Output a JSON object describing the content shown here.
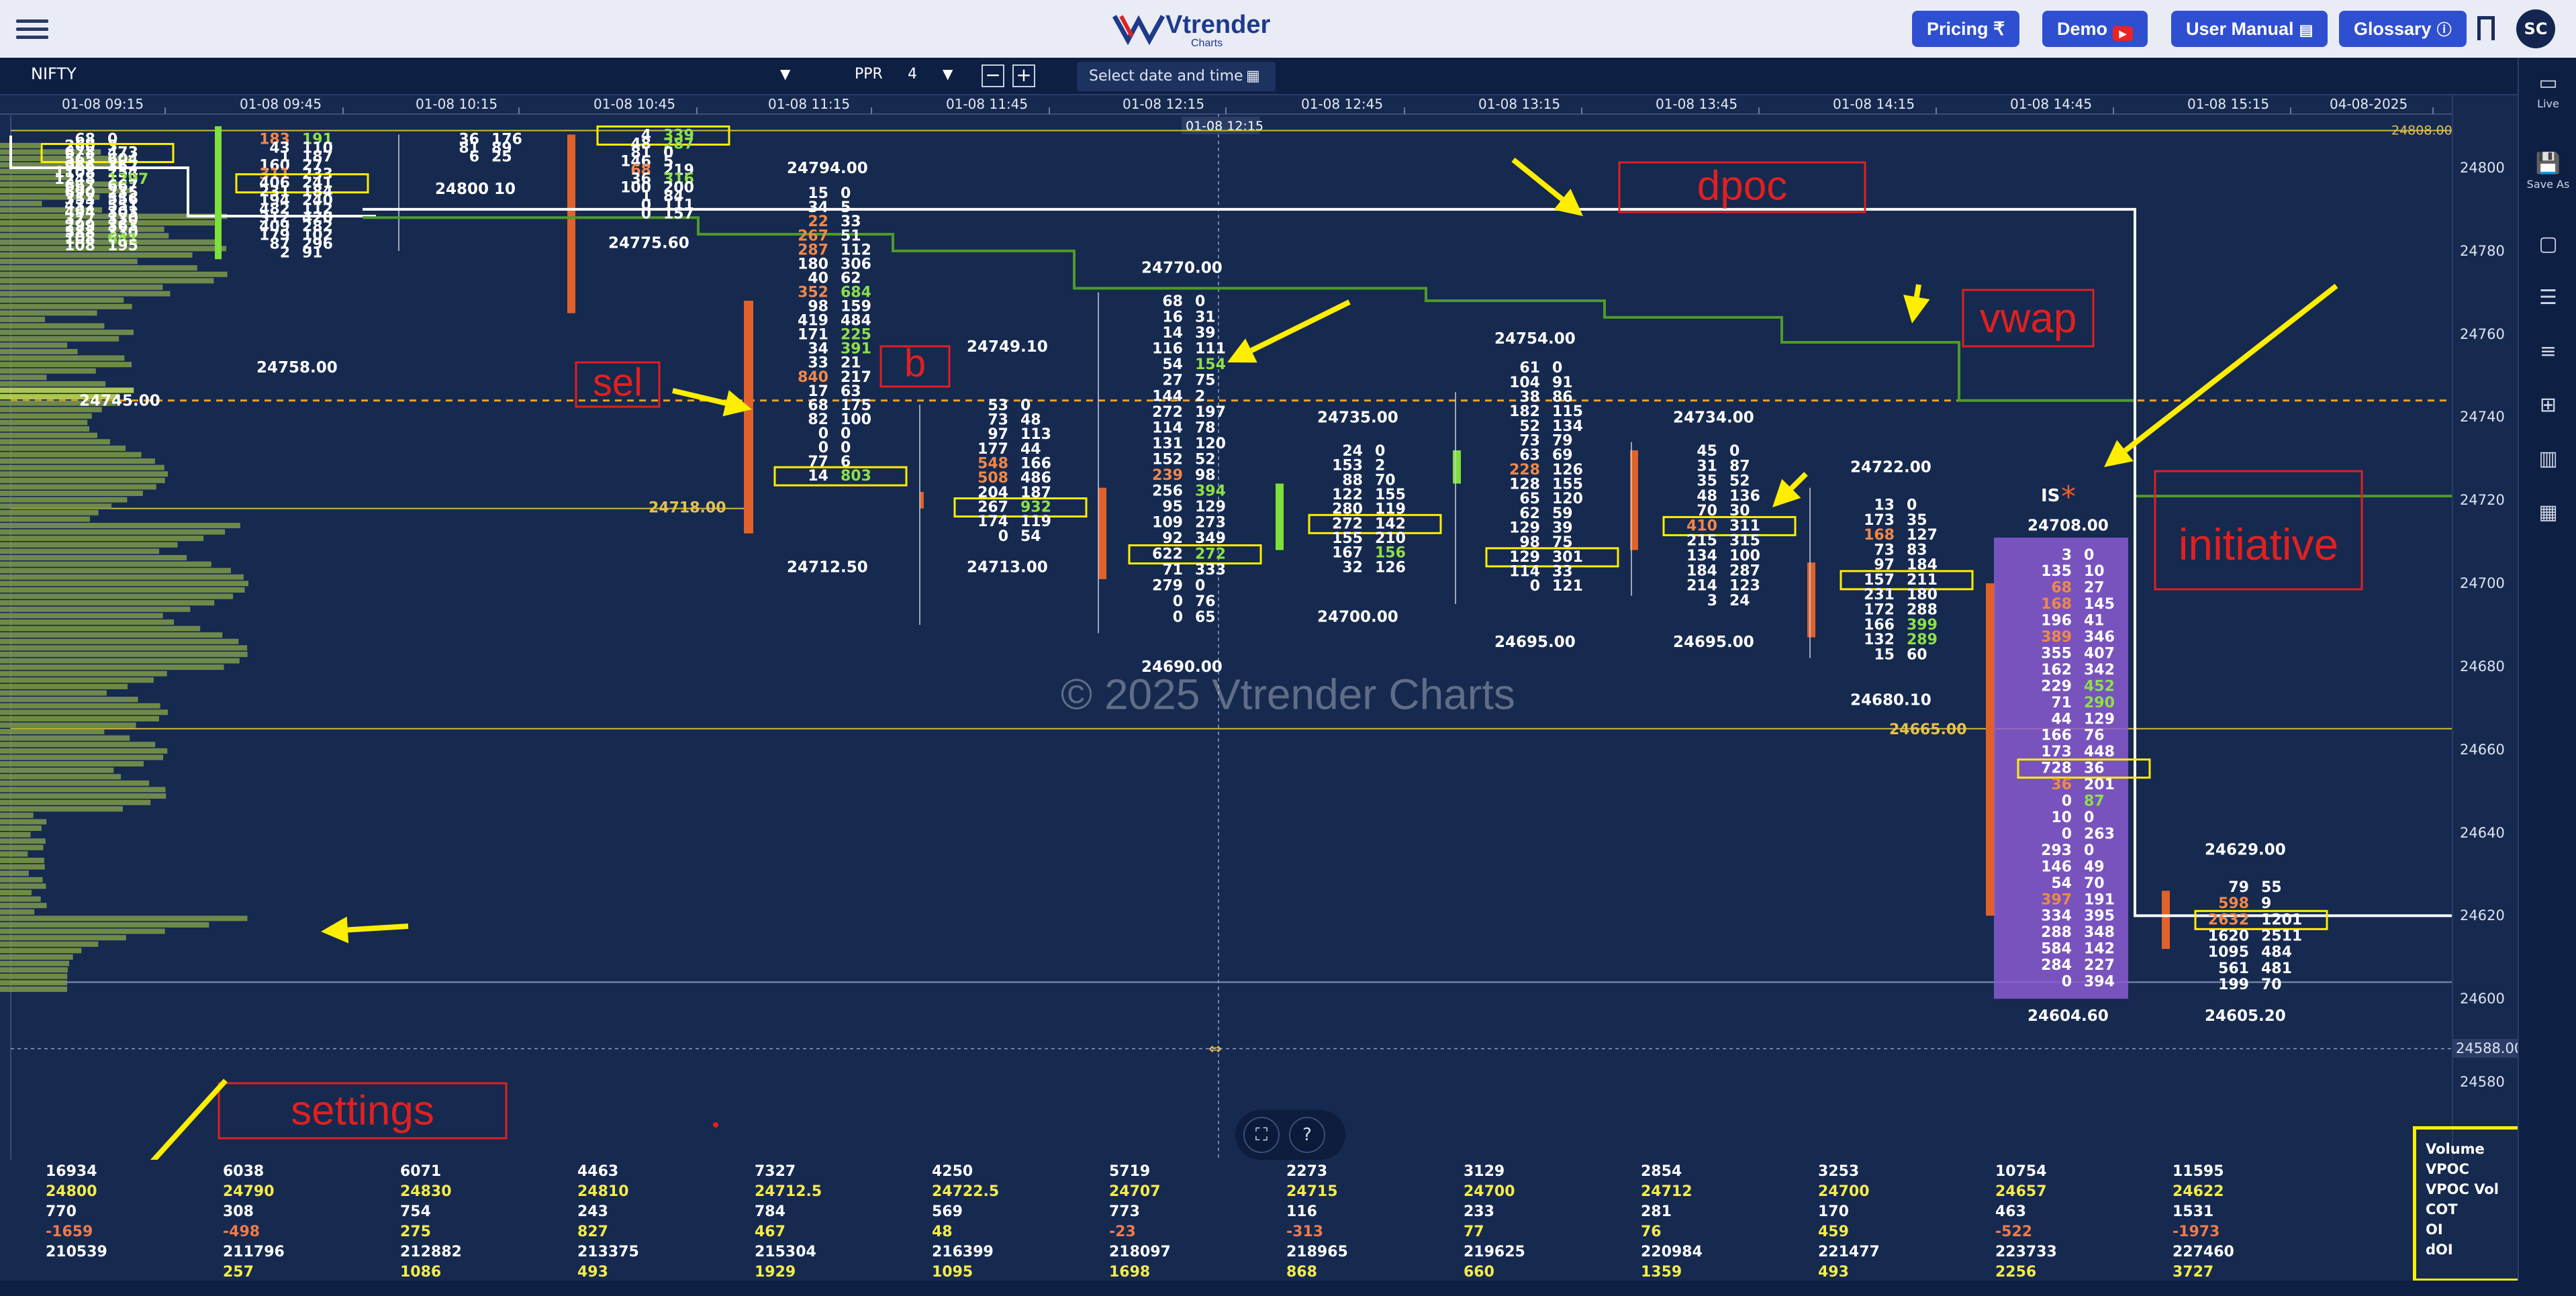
{
  "header": {
    "brand_name": "Vtrender",
    "brand_sub": "Charts",
    "nav": [
      {
        "label": "Pricing ₹"
      },
      {
        "label": "Demo"
      },
      {
        "label": "User Manual"
      },
      {
        "label": "Glossary"
      }
    ],
    "avatar_initials": "SC"
  },
  "toolbar": {
    "symbol": "NIFTY",
    "ppr_label": "PPR",
    "ppr_value": "4",
    "minus": "−",
    "plus": "+",
    "date_placeholder": "Select date and time"
  },
  "side_panel": [
    {
      "icon": "live-icon",
      "label": "Live"
    },
    {
      "icon": "save-icon",
      "label": "Save As"
    },
    {
      "icon": "square-icon",
      "label": ""
    },
    {
      "icon": "list-icon",
      "label": ""
    },
    {
      "icon": "rows-icon",
      "label": ""
    },
    {
      "icon": "grid-icon",
      "label": ""
    },
    {
      "icon": "columns-icon",
      "label": ""
    },
    {
      "icon": "tiles-icon",
      "label": ""
    }
  ],
  "time_axis": [
    "01-08 09:15",
    "01-08 09:45",
    "01-08 10:15",
    "01-08 10:45",
    "01-08 11:15",
    "01-08 11:45",
    "01-08 12:15",
    "01-08 12:45",
    "01-08 13:15",
    "01-08 13:45",
    "01-08 14:15",
    "01-08 14:45",
    "01-08 15:15",
    "04-08-2025"
  ],
  "crosshair_time": "01-08 12:15",
  "crosshair_price": "24588.00",
  "price_axis": [
    "24800",
    "24780",
    "24760",
    "24740",
    "24720",
    "24700",
    "24680",
    "24660",
    "24640",
    "24620",
    "24600",
    "24580"
  ],
  "price_marks": {
    "top_right": "24808.00",
    "level_24718": "24718.00",
    "level_24665": "24665.00"
  },
  "watermark": "© 2025 Vtrender Charts",
  "annotations": {
    "dpoc": "dpoc",
    "vwap": "vwap",
    "sel": "sel",
    "b": "b",
    "initiative": "initiative",
    "settings": "settings",
    "is": "IS"
  },
  "profile_labels": [
    {
      "t": "24745.00"
    },
    {
      "t": "24758.00"
    },
    {
      "t": "24800 10"
    },
    {
      "t": "24775.60"
    },
    {
      "t": "24794.00"
    },
    {
      "t": "24712.50"
    },
    {
      "t": "24749.10"
    },
    {
      "t": "24713.00"
    },
    {
      "t": "24770.00"
    },
    {
      "t": "24690.00"
    },
    {
      "t": "24735.00"
    },
    {
      "t": "24700.00"
    },
    {
      "t": "24754.00"
    },
    {
      "t": "24695.00"
    },
    {
      "t": "24734.00"
    },
    {
      "t": "24695.00"
    },
    {
      "t": "24722.00"
    },
    {
      "t": "24680.10"
    },
    {
      "t": "24708.00"
    },
    {
      "t": "24604.60"
    },
    {
      "t": "24629.00"
    },
    {
      "t": "24605.20"
    }
  ],
  "footprint": {
    "c0": [
      [
        "68",
        "0"
      ],
      [
        "260",
        "3"
      ],
      [
        "678",
        "473"
      ],
      [
        "565",
        "604"
      ],
      [
        "966",
        "362"
      ],
      [
        "1108",
        "254"
      ],
      [
        "1248",
        "1297"
      ],
      [
        "667",
        "667"
      ],
      [
        "690",
        "235"
      ],
      [
        "353",
        "556"
      ],
      [
        "432",
        "551"
      ],
      [
        "494",
        "303"
      ],
      [
        "377",
        "330"
      ],
      [
        "299",
        "363"
      ],
      [
        "588",
        "330"
      ],
      [
        "108",
        "641"
      ],
      [
        "108",
        "195"
      ]
    ],
    "c1": [
      [
        "183",
        "191"
      ],
      [
        "43",
        "110"
      ],
      [
        "1",
        "187"
      ],
      [
        "160",
        "27"
      ],
      [
        "311",
        "233"
      ],
      [
        "406",
        "241"
      ],
      [
        "231",
        "184"
      ],
      [
        "194",
        "240"
      ],
      [
        "482",
        "112"
      ],
      [
        "312",
        "420"
      ],
      [
        "409",
        "282"
      ],
      [
        "179",
        "102"
      ],
      [
        "87",
        "296"
      ],
      [
        "2",
        "91"
      ]
    ],
    "c2": [
      [
        "36",
        "176"
      ],
      [
        "81",
        "89"
      ],
      [
        "6",
        "25"
      ]
    ],
    "c3": [
      [
        "4",
        "339"
      ],
      [
        "48",
        "287"
      ],
      [
        "81",
        "0"
      ],
      [
        "146",
        "5"
      ],
      [
        "68",
        "219"
      ],
      [
        "36",
        "316"
      ],
      [
        "100",
        "200"
      ],
      [
        "1",
        "84"
      ],
      [
        "0",
        "111"
      ],
      [
        "0",
        "157"
      ]
    ],
    "c4": [
      [
        "15",
        "0"
      ],
      [
        "34",
        "5"
      ],
      [
        "22",
        "33"
      ],
      [
        "267",
        "51"
      ],
      [
        "287",
        "112"
      ],
      [
        "180",
        "306"
      ],
      [
        "40",
        "62"
      ],
      [
        "352",
        "684"
      ],
      [
        "98",
        "159"
      ],
      [
        "419",
        "484"
      ],
      [
        "171",
        "225"
      ],
      [
        "34",
        "391"
      ],
      [
        "33",
        "21"
      ],
      [
        "840",
        "217"
      ],
      [
        "17",
        "63"
      ],
      [
        "68",
        "175"
      ],
      [
        "82",
        "100"
      ],
      [
        "0",
        "0"
      ],
      [
        "0",
        "0"
      ],
      [
        "77",
        "6"
      ],
      [
        "14",
        "803"
      ]
    ],
    "c5": [
      [
        "53",
        "0"
      ],
      [
        "73",
        "48"
      ],
      [
        "97",
        "113"
      ],
      [
        "177",
        "44"
      ],
      [
        "548",
        "166"
      ],
      [
        "508",
        "486"
      ],
      [
        "204",
        "187"
      ],
      [
        "267",
        "932"
      ],
      [
        "174",
        "119"
      ],
      [
        "0",
        "54"
      ]
    ],
    "c6": [
      [
        "68",
        "0"
      ],
      [
        "16",
        "31"
      ],
      [
        "14",
        "39"
      ],
      [
        "116",
        "111"
      ],
      [
        "54",
        "154"
      ],
      [
        "27",
        "75"
      ],
      [
        "144",
        "2"
      ],
      [
        "272",
        "197"
      ],
      [
        "114",
        "78"
      ],
      [
        "131",
        "120"
      ],
      [
        "152",
        "52"
      ],
      [
        "239",
        "98"
      ],
      [
        "256",
        "394"
      ],
      [
        "95",
        "129"
      ],
      [
        "109",
        "273"
      ],
      [
        "92",
        "349"
      ],
      [
        "622",
        "272"
      ],
      [
        "71",
        "333"
      ],
      [
        "279",
        "0"
      ],
      [
        "0",
        "76"
      ],
      [
        "0",
        "65"
      ]
    ],
    "c7": [
      [
        "24",
        "0"
      ],
      [
        "153",
        "2"
      ],
      [
        "88",
        "70"
      ],
      [
        "122",
        "155"
      ],
      [
        "280",
        "119"
      ],
      [
        "272",
        "142"
      ],
      [
        "155",
        "210"
      ],
      [
        "167",
        "156"
      ],
      [
        "32",
        "126"
      ]
    ],
    "c8": [
      [
        "61",
        "0"
      ],
      [
        "104",
        "91"
      ],
      [
        "38",
        "86"
      ],
      [
        "182",
        "115"
      ],
      [
        "52",
        "134"
      ],
      [
        "73",
        "79"
      ],
      [
        "63",
        "69"
      ],
      [
        "228",
        "126"
      ],
      [
        "128",
        "155"
      ],
      [
        "65",
        "120"
      ],
      [
        "62",
        "59"
      ],
      [
        "129",
        "39"
      ],
      [
        "98",
        "75"
      ],
      [
        "129",
        "301"
      ],
      [
        "114",
        "33"
      ],
      [
        "0",
        "121"
      ]
    ],
    "c9": [
      [
        "45",
        "0"
      ],
      [
        "31",
        "87"
      ],
      [
        "35",
        "52"
      ],
      [
        "48",
        "136"
      ],
      [
        "70",
        "30"
      ],
      [
        "410",
        "311"
      ],
      [
        "215",
        "315"
      ],
      [
        "134",
        "100"
      ],
      [
        "184",
        "287"
      ],
      [
        "214",
        "123"
      ],
      [
        "3",
        "24"
      ]
    ],
    "c10": [
      [
        "13",
        "0"
      ],
      [
        "173",
        "35"
      ],
      [
        "168",
        "127"
      ],
      [
        "73",
        "83"
      ],
      [
        "97",
        "184"
      ],
      [
        "157",
        "211"
      ],
      [
        "231",
        "180"
      ],
      [
        "172",
        "288"
      ],
      [
        "166",
        "399"
      ],
      [
        "132",
        "289"
      ],
      [
        "15",
        "60"
      ]
    ],
    "c11": [
      [
        "3",
        "0"
      ],
      [
        "135",
        "10"
      ],
      [
        "68",
        "27"
      ],
      [
        "168",
        "145"
      ],
      [
        "196",
        "41"
      ],
      [
        "389",
        "346"
      ],
      [
        "355",
        "407"
      ],
      [
        "162",
        "342"
      ],
      [
        "229",
        "452"
      ],
      [
        "71",
        "290"
      ],
      [
        "44",
        "129"
      ],
      [
        "166",
        "76"
      ],
      [
        "173",
        "448"
      ],
      [
        "728",
        "36"
      ],
      [
        "36",
        "201"
      ],
      [
        "0",
        "87"
      ],
      [
        "10",
        "0"
      ],
      [
        "0",
        "263"
      ],
      [
        "293",
        "0"
      ],
      [
        "146",
        "49"
      ],
      [
        "54",
        "70"
      ],
      [
        "397",
        "191"
      ],
      [
        "334",
        "395"
      ],
      [
        "288",
        "348"
      ],
      [
        "584",
        "142"
      ],
      [
        "284",
        "227"
      ],
      [
        "0",
        "394"
      ]
    ],
    "c12": [
      [
        "79",
        "55"
      ],
      [
        "598",
        "9"
      ],
      [
        "2632",
        "1201"
      ],
      [
        "1620",
        "2511"
      ],
      [
        "1095",
        "484"
      ],
      [
        "561",
        "481"
      ],
      [
        "199",
        "70"
      ]
    ]
  },
  "stats": [
    {
      "volume": "16934",
      "vpoc": "24800",
      "vpoc_vol": "770",
      "cot": "-1659",
      "oi": "210539",
      "doi": ""
    },
    {
      "volume": "6038",
      "vpoc": "24790",
      "vpoc_vol": "308",
      "cot": "-498",
      "oi": "211796",
      "doi": "257"
    },
    {
      "volume": "6071",
      "vpoc": "24830",
      "vpoc_vol": "754",
      "cot": "275",
      "oi": "212882",
      "doi": "1086"
    },
    {
      "volume": "4463",
      "vpoc": "24810",
      "vpoc_vol": "243",
      "cot": "827",
      "oi": "213375",
      "doi": "493"
    },
    {
      "volume": "7327",
      "vpoc": "24712.5",
      "vpoc_vol": "784",
      "cot": "467",
      "oi": "215304",
      "doi": "1929"
    },
    {
      "volume": "4250",
      "vpoc": "24722.5",
      "vpoc_vol": "569",
      "cot": "48",
      "oi": "216399",
      "doi": "1095"
    },
    {
      "volume": "5719",
      "vpoc": "24707",
      "vpoc_vol": "773",
      "cot": "-23",
      "oi": "218097",
      "doi": "1698"
    },
    {
      "volume": "2273",
      "vpoc": "24715",
      "vpoc_vol": "116",
      "cot": "-313",
      "oi": "218965",
      "doi": "868"
    },
    {
      "volume": "3129",
      "vpoc": "24700",
      "vpoc_vol": "233",
      "cot": "77",
      "oi": "219625",
      "doi": "660"
    },
    {
      "volume": "2854",
      "vpoc": "24712",
      "vpoc_vol": "281",
      "cot": "76",
      "oi": "220984",
      "doi": "1359"
    },
    {
      "volume": "3253",
      "vpoc": "24700",
      "vpoc_vol": "170",
      "cot": "459",
      "oi": "221477",
      "doi": "493"
    },
    {
      "volume": "10754",
      "vpoc": "24657",
      "vpoc_vol": "463",
      "cot": "-522",
      "oi": "223733",
      "doi": "2256"
    },
    {
      "volume": "11595",
      "vpoc": "24622",
      "vpoc_vol": "1531",
      "cot": "-1973",
      "oi": "227460",
      "doi": "3727"
    }
  ],
  "stats_legend": [
    "Volume",
    "VPOC",
    "VPOC Vol",
    "COT",
    "OI",
    "dOI"
  ],
  "colors": {
    "background": "#16294f",
    "vpoc_box": "#ffee00",
    "vwap": "#4e9a2a",
    "dpoc": "#ffffff",
    "bear_bar": "#e0622a",
    "bull_bar": "#7ee03a",
    "arrow": "#ffee00",
    "annotation": "#e02020"
  }
}
